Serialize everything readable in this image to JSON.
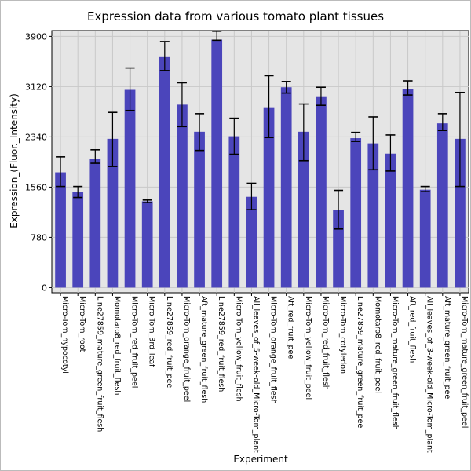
{
  "chart_data": {
    "type": "bar",
    "title": "Expression data from various tomato plant tissues",
    "xlabel": "Experiment",
    "ylabel": "Expression_(Fluor._Intensity)",
    "yticks": [
      0,
      780,
      1560,
      2340,
      3120,
      3900
    ],
    "ylim": [
      -80,
      3990
    ],
    "grid": true,
    "bar_color": "#4b45bb",
    "plot_bg": "#e5e5e5",
    "categories": [
      "Micro-Tom_hypocotyl",
      "Micro-Tom_root",
      "Line27859_mature_green_fruit_flesh",
      "Momotaro8_red_fruit_flesh",
      "Micro-Tom_red_fruit_peel",
      "Micro-Tom_3rd_leaf",
      "Line27859_red_fruit_peel",
      "Micro-Tom_orange_fruit_peel",
      "Aft_mature_green_fruit_flesh",
      "Line27859_red_fruit_flesh",
      "Micro-Tom_yellow_fruit_flesh",
      "All_leaves_of_5-week-old_Micro-Tom_plant",
      "Micro-Tom_orange_fruit_flesh",
      "Aft_red_fruit_peel",
      "Micro-Tom_yellow_fruit_peel",
      "Micro-Tom_red_fruit_flesh",
      "Micro-Tom_cotyledon",
      "Line27859_mature_green_fruit_peel",
      "Momotaro8_red_fruit_peel",
      "Micro-Tom_mature_green_fruit_flesh",
      "Aft_red_fruit_flesh",
      "All_leaves_of_3-week-old_Micro-Tom_plant",
      "Aft_mature_green_fruit_peel",
      "Micro-Tom_mature_green_fruit_peel"
    ],
    "values": [
      1790,
      1480,
      2000,
      2310,
      3070,
      1340,
      3590,
      2840,
      2420,
      3850,
      2350,
      1410,
      2800,
      3110,
      2420,
      2970,
      1200,
      2320,
      2240,
      2080,
      3080,
      1520,
      2550,
      2310
    ],
    "error_low": [
      1570,
      1400,
      1930,
      1880,
      2750,
      1320,
      3370,
      2500,
      2130,
      3840,
      2070,
      1210,
      2330,
      3020,
      1970,
      2830,
      910,
      2270,
      1830,
      1810,
      2990,
      1490,
      2440,
      1570
    ],
    "error_high": [
      2030,
      1570,
      2140,
      2720,
      3410,
      1360,
      3820,
      3180,
      2700,
      3980,
      2630,
      1620,
      3290,
      3200,
      2850,
      3110,
      1510,
      2410,
      2650,
      2370,
      3210,
      1570,
      2700,
      3030
    ]
  }
}
